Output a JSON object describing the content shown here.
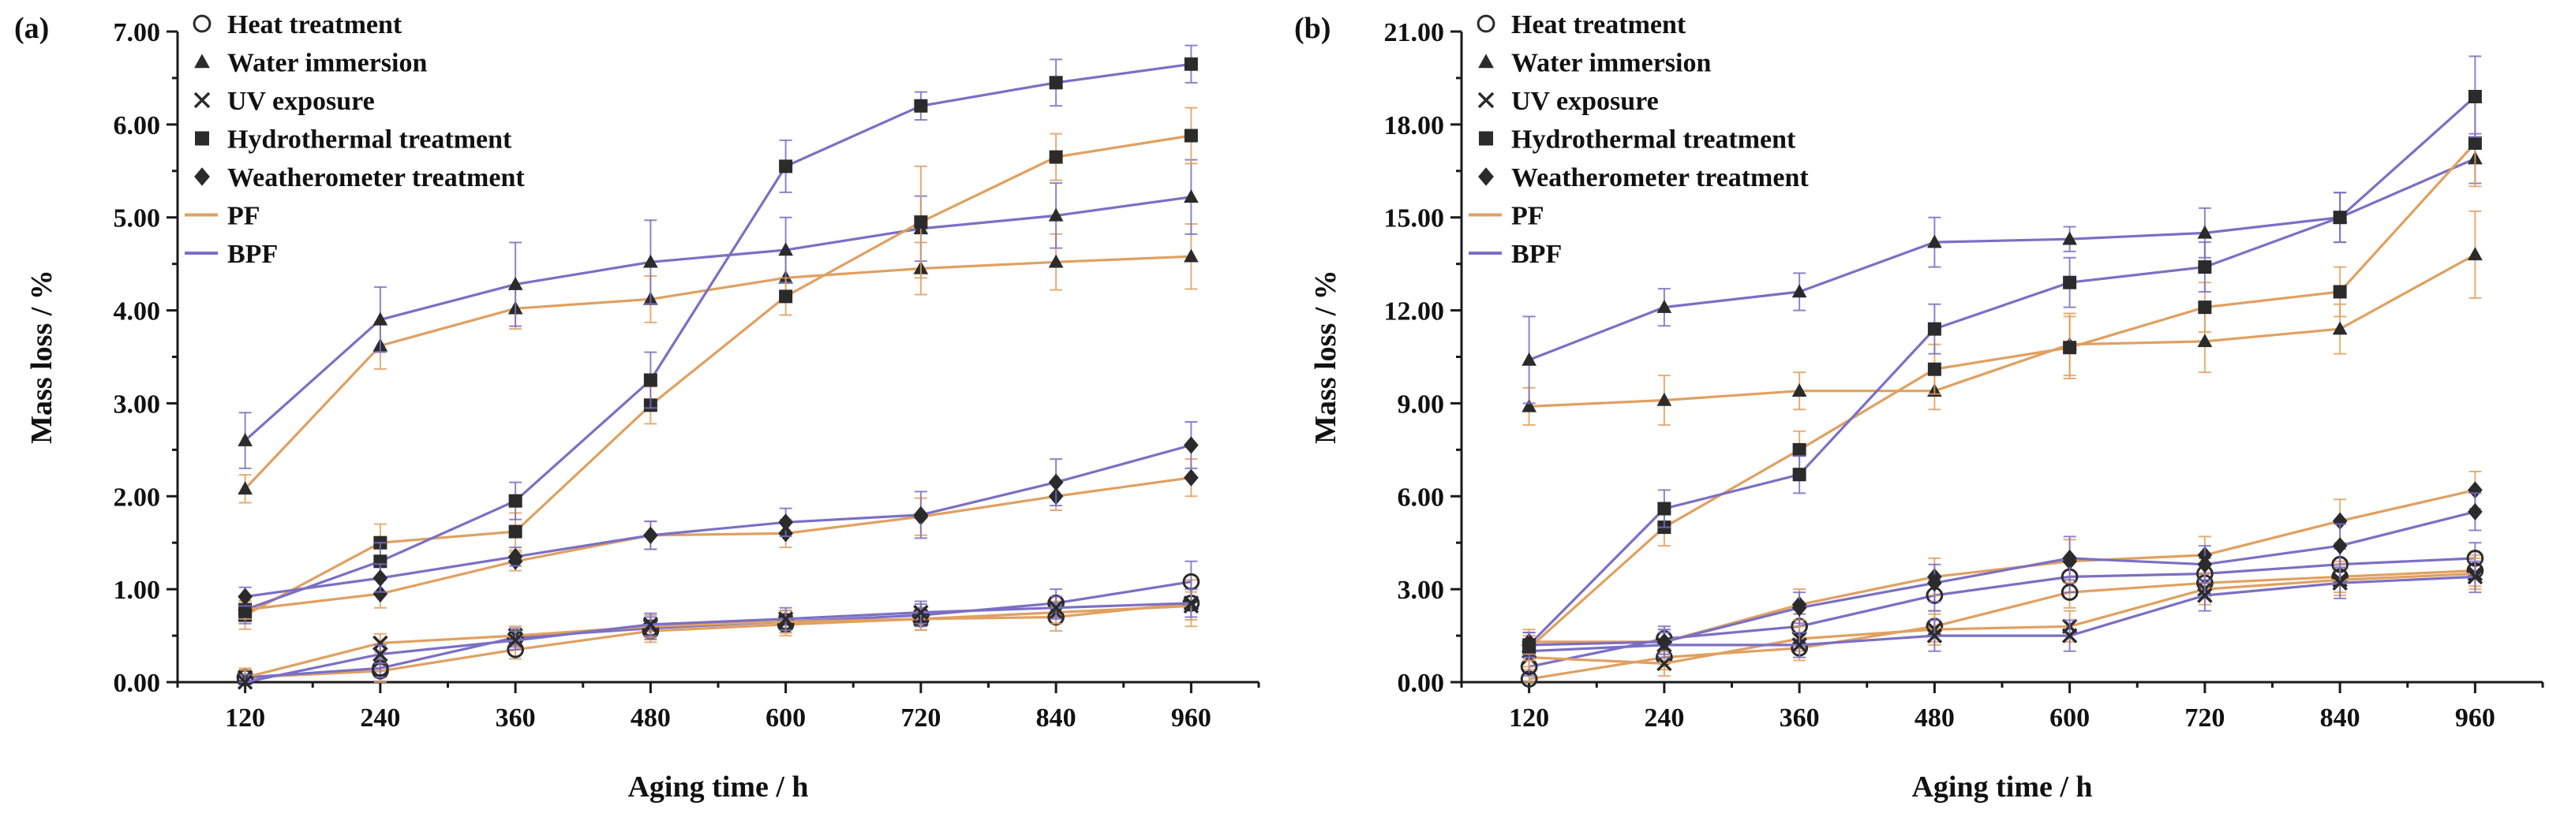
{
  "chart_data": [
    {
      "type": "line",
      "panel_label": "(a)",
      "xlabel": "Aging time / h",
      "ylabel": "Mass loss / %",
      "ylim": [
        0,
        7
      ],
      "yticks": [
        "0.00",
        "1.00",
        "2.00",
        "3.00",
        "4.00",
        "5.00",
        "6.00",
        "7.00"
      ],
      "xlim": [
        60,
        1020
      ],
      "x": [
        120,
        240,
        360,
        480,
        600,
        720,
        840,
        960
      ],
      "xticks": [
        "120",
        "240",
        "360",
        "480",
        "600",
        "720",
        "840",
        "960"
      ],
      "series": [
        {
          "name": "PF Heat treatment",
          "material": "PF",
          "treatment": "heat",
          "values": [
            0.05,
            0.12,
            0.35,
            0.55,
            0.62,
            0.68,
            0.7,
            0.85
          ],
          "err": [
            0.1,
            0.12,
            0.1,
            0.12,
            0.12,
            0.12,
            0.15,
            0.25
          ]
        },
        {
          "name": "BPF Heat treatment",
          "material": "BPF",
          "treatment": "heat",
          "values": [
            0.05,
            0.15,
            0.48,
            0.58,
            0.65,
            0.72,
            0.85,
            1.08
          ],
          "err": [
            0.08,
            0.1,
            0.1,
            0.12,
            0.12,
            0.12,
            0.15,
            0.22
          ]
        },
        {
          "name": "PF Water immersion",
          "material": "PF",
          "treatment": "water",
          "values": [
            2.08,
            3.62,
            4.02,
            4.12,
            4.35,
            4.45,
            4.52,
            4.58
          ],
          "err": [
            0.15,
            0.25,
            0.22,
            0.25,
            0.25,
            0.28,
            0.3,
            0.35
          ]
        },
        {
          "name": "BPF Water immersion",
          "material": "BPF",
          "treatment": "water",
          "values": [
            2.6,
            3.9,
            4.28,
            4.52,
            4.65,
            4.88,
            5.02,
            5.22
          ],
          "err": [
            0.3,
            0.35,
            0.45,
            0.45,
            0.35,
            0.35,
            0.35,
            0.4
          ]
        },
        {
          "name": "PF UV exposure",
          "material": "PF",
          "treatment": "uv",
          "values": [
            0.05,
            0.42,
            0.5,
            0.6,
            0.65,
            0.68,
            0.75,
            0.82
          ],
          "err": [
            0.08,
            0.1,
            0.1,
            0.12,
            0.12,
            0.12,
            0.12,
            0.15
          ]
        },
        {
          "name": "BPF UV exposure",
          "material": "BPF",
          "treatment": "uv",
          "values": [
            0.0,
            0.3,
            0.45,
            0.62,
            0.68,
            0.75,
            0.8,
            0.85
          ],
          "err": [
            0.08,
            0.1,
            0.1,
            0.12,
            0.12,
            0.12,
            0.12,
            0.15
          ]
        },
        {
          "name": "PF Hydrothermal treatment",
          "material": "PF",
          "treatment": "hydro",
          "values": [
            0.72,
            1.5,
            1.62,
            2.98,
            4.15,
            4.95,
            5.65,
            5.88
          ],
          "err": [
            0.15,
            0.2,
            0.2,
            0.2,
            0.2,
            0.6,
            0.25,
            0.3
          ]
        },
        {
          "name": "BPF Hydrothermal treatment",
          "material": "BPF",
          "treatment": "hydro",
          "values": [
            0.78,
            1.3,
            1.95,
            3.25,
            5.55,
            6.2,
            6.45,
            6.65
          ],
          "err": [
            0.15,
            0.2,
            0.2,
            0.3,
            0.28,
            0.15,
            0.25,
            0.2
          ]
        },
        {
          "name": "PF Weatherometer treatment",
          "material": "PF",
          "treatment": "weather",
          "values": [
            0.78,
            0.95,
            1.3,
            1.58,
            1.6,
            1.78,
            2.0,
            2.2
          ],
          "err": [
            0.1,
            0.15,
            0.1,
            0.15,
            0.15,
            0.2,
            0.15,
            0.2
          ]
        },
        {
          "name": "BPF Weatherometer treatment",
          "material": "BPF",
          "treatment": "weather",
          "values": [
            0.92,
            1.12,
            1.35,
            1.58,
            1.72,
            1.8,
            2.15,
            2.55
          ],
          "err": [
            0.1,
            0.15,
            0.1,
            0.15,
            0.15,
            0.25,
            0.25,
            0.25
          ]
        }
      ]
    },
    {
      "type": "line",
      "panel_label": "(b)",
      "xlabel": "Aging time / h",
      "ylabel": "Mass loss / %",
      "ylim": [
        0,
        21
      ],
      "yticks": [
        "0.00",
        "3.00",
        "6.00",
        "9.00",
        "12.00",
        "15.00",
        "18.00",
        "21.00"
      ],
      "xlim": [
        60,
        1020
      ],
      "x": [
        120,
        240,
        360,
        480,
        600,
        720,
        840,
        960
      ],
      "xticks": [
        "120",
        "240",
        "360",
        "480",
        "600",
        "720",
        "840",
        "960"
      ],
      "series": [
        {
          "name": "PF Heat treatment",
          "material": "PF",
          "treatment": "heat",
          "values": [
            0.1,
            0.8,
            1.1,
            1.8,
            2.9,
            3.2,
            3.4,
            3.6
          ],
          "err": [
            0.3,
            0.4,
            0.4,
            0.5,
            0.5,
            0.5,
            0.5,
            0.5
          ]
        },
        {
          "name": "BPF Heat treatment",
          "material": "BPF",
          "treatment": "heat",
          "values": [
            0.5,
            1.4,
            1.8,
            2.8,
            3.4,
            3.5,
            3.8,
            4.0
          ],
          "err": [
            0.3,
            0.4,
            0.4,
            0.5,
            0.5,
            0.5,
            0.5,
            0.5
          ]
        },
        {
          "name": "PF Water immersion",
          "material": "PF",
          "treatment": "water",
          "values": [
            8.9,
            9.1,
            9.4,
            9.4,
            10.9,
            11.0,
            11.4,
            13.8
          ],
          "err": [
            0.6,
            0.8,
            0.6,
            0.6,
            1.0,
            1.0,
            0.8,
            1.4
          ]
        },
        {
          "name": "BPF Water immersion",
          "material": "BPF",
          "treatment": "water",
          "values": [
            10.4,
            12.1,
            12.6,
            14.2,
            14.3,
            14.5,
            15.0,
            16.9
          ],
          "err": [
            1.4,
            0.6,
            0.6,
            0.8,
            0.4,
            0.8,
            0.8,
            0.8
          ]
        },
        {
          "name": "PF UV exposure",
          "material": "PF",
          "treatment": "uv",
          "values": [
            0.8,
            0.6,
            1.4,
            1.7,
            1.8,
            3.0,
            3.3,
            3.5
          ],
          "err": [
            0.3,
            0.4,
            0.4,
            0.5,
            0.5,
            0.5,
            0.5,
            0.5
          ]
        },
        {
          "name": "BPF UV exposure",
          "material": "BPF",
          "treatment": "uv",
          "values": [
            1.0,
            1.2,
            1.2,
            1.5,
            1.5,
            2.8,
            3.2,
            3.4
          ],
          "err": [
            0.3,
            0.4,
            0.4,
            0.5,
            0.5,
            0.5,
            0.5,
            0.5
          ]
        },
        {
          "name": "PF Hydrothermal treatment",
          "material": "PF",
          "treatment": "hydro",
          "values": [
            1.1,
            5.0,
            7.5,
            10.1,
            10.8,
            12.1,
            12.6,
            17.4
          ],
          "err": [
            0.4,
            0.6,
            0.6,
            0.8,
            1.0,
            0.8,
            0.8,
            1.4
          ]
        },
        {
          "name": "BPF Hydrothermal treatment",
          "material": "BPF",
          "treatment": "hydro",
          "values": [
            1.2,
            5.6,
            6.7,
            11.4,
            12.9,
            13.4,
            15.0,
            18.9
          ],
          "err": [
            0.4,
            0.6,
            0.6,
            0.8,
            0.8,
            0.8,
            0.8,
            1.3
          ]
        },
        {
          "name": "PF Weatherometer treatment",
          "material": "PF",
          "treatment": "weather",
          "values": [
            1.3,
            1.3,
            2.5,
            3.4,
            3.9,
            4.1,
            5.2,
            6.2
          ],
          "err": [
            0.4,
            0.4,
            0.5,
            0.6,
            0.7,
            0.6,
            0.7,
            0.6
          ]
        },
        {
          "name": "BPF Weatherometer treatment",
          "material": "BPF",
          "treatment": "weather",
          "values": [
            1.2,
            1.3,
            2.4,
            3.2,
            4.0,
            3.8,
            4.4,
            5.5
          ],
          "err": [
            0.4,
            0.4,
            0.5,
            0.6,
            0.7,
            0.6,
            0.7,
            0.6
          ]
        }
      ]
    }
  ],
  "legend": [
    {
      "key": "heat",
      "kind": "marker",
      "marker": "circle",
      "label": "Heat treatment"
    },
    {
      "key": "water",
      "kind": "marker",
      "marker": "triangle",
      "label": "Water immersion"
    },
    {
      "key": "uv",
      "kind": "marker",
      "marker": "cross",
      "label": "UV exposure"
    },
    {
      "key": "hydro",
      "kind": "marker",
      "marker": "square",
      "label": "Hydrothermal treatment"
    },
    {
      "key": "weather",
      "kind": "marker",
      "marker": "diamond",
      "label": "Weatherometer treatment"
    },
    {
      "key": "PF",
      "kind": "line",
      "label": "PF"
    },
    {
      "key": "BPF",
      "kind": "line",
      "label": "BPF"
    }
  ],
  "colors": {
    "PF": "#e0a060",
    "BPF": "#7b6fc4",
    "marker": "#2b2b2b",
    "axis": "#1a1a1a"
  }
}
